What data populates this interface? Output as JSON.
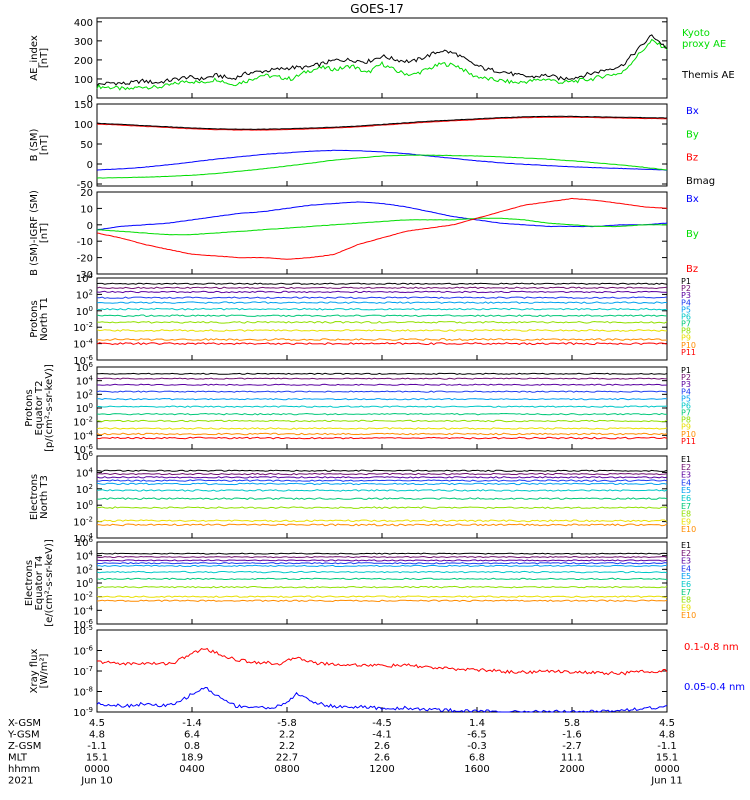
{
  "title": "GOES-17",
  "colors": {
    "black": "#000000",
    "green": "#00dd00",
    "blue": "#0000ff",
    "red": "#ff0000",
    "p_levels": [
      "#000000",
      "#701070",
      "#5a00a0",
      "#1e3cf0",
      "#00a0f0",
      "#00c8c8",
      "#00c878",
      "#90e000",
      "#e8e000",
      "#ff8c00",
      "#ff0000"
    ]
  },
  "chart_data": [
    {
      "type": "line",
      "panel": "ae",
      "ylabel": "AE_index\n[nT]",
      "ylim": [
        0,
        420
      ],
      "yticks": [
        "400",
        "300",
        "200",
        "100",
        "0"
      ],
      "series": [
        {
          "name": "Kyoto\nproxy AE",
          "color": "#00dd00",
          "values": [
            60,
            55,
            45,
            60,
            55,
            70,
            90,
            80,
            100,
            70,
            90,
            120,
            110,
            100,
            140,
            160,
            150,
            170,
            130,
            180,
            140,
            120,
            150,
            180,
            170,
            120,
            100,
            90,
            80,
            90,
            100,
            80,
            90,
            100,
            120,
            130,
            220,
            300,
            260
          ]
        },
        {
          "name": "Themis AE",
          "color": "#000000",
          "values": [
            70,
            80,
            75,
            90,
            80,
            95,
            110,
            100,
            120,
            100,
            130,
            140,
            150,
            160,
            160,
            180,
            200,
            200,
            190,
            220,
            200,
            190,
            220,
            250,
            230,
            180,
            150,
            140,
            120,
            110,
            120,
            100,
            110,
            130,
            150,
            170,
            250,
            330,
            260
          ]
        }
      ]
    },
    {
      "type": "line",
      "panel": "b",
      "ylabel": "B (SM)\n[nT]",
      "ylim": [
        -55,
        150
      ],
      "yticks": [
        "150",
        "100",
        "50",
        "0",
        "-50"
      ],
      "series": [
        {
          "name": "Bx",
          "color": "#0000ff",
          "values": [
            -15,
            -12,
            -8,
            -2,
            5,
            12,
            18,
            24,
            28,
            32,
            34,
            33,
            30,
            26,
            20,
            14,
            8,
            3,
            -1,
            -4,
            -7,
            -9,
            -11,
            -13,
            -15
          ]
        },
        {
          "name": "By",
          "color": "#00dd00",
          "values": [
            -35,
            -34,
            -33,
            -31,
            -28,
            -24,
            -18,
            -12,
            -5,
            2,
            10,
            15,
            20,
            22,
            22,
            21,
            20,
            18,
            15,
            12,
            8,
            3,
            -2,
            -8,
            -15
          ]
        },
        {
          "name": "Bz",
          "color": "#ff0000",
          "values": [
            100,
            97,
            94,
            91,
            88,
            86,
            85,
            85,
            86,
            88,
            90,
            93,
            97,
            101,
            105,
            108,
            111,
            114,
            116,
            117,
            117,
            116,
            115,
            114,
            113
          ]
        },
        {
          "name": "Bmag",
          "color": "#000000",
          "values": [
            102,
            99,
            96,
            93,
            90,
            88,
            87,
            87,
            88,
            90,
            92,
            95,
            99,
            103,
            107,
            110,
            113,
            116,
            118,
            119,
            119,
            118,
            117,
            116,
            115
          ]
        }
      ]
    },
    {
      "type": "line",
      "panel": "db",
      "ylabel": "B (SM)-IGRF (SM)\n[nT]",
      "ylim": [
        -30,
        20
      ],
      "yticks": [
        "20",
        "10",
        "0",
        "-10",
        "-20",
        "-30"
      ],
      "series": [
        {
          "name": "Bx",
          "color": "#0000ff",
          "values": [
            -3,
            -1,
            0,
            1,
            3,
            5,
            7,
            8,
            10,
            12,
            13,
            14,
            13,
            11,
            8,
            5,
            3,
            1,
            0,
            -1,
            -1,
            -1,
            0,
            0,
            1
          ]
        },
        {
          "name": "By",
          "color": "#00dd00",
          "values": [
            -3,
            -4,
            -5,
            -6,
            -6,
            -5,
            -4,
            -3,
            -2,
            -1,
            0,
            1,
            2,
            3,
            3,
            3,
            4,
            4,
            3,
            1,
            0,
            -1,
            -1,
            0,
            0
          ]
        },
        {
          "name": "Bz",
          "color": "#ff0000",
          "values": [
            -5,
            -8,
            -12,
            -15,
            -18,
            -19,
            -20,
            -20,
            -21,
            -20,
            -18,
            -12,
            -8,
            -4,
            -2,
            0,
            4,
            8,
            12,
            14,
            16,
            15,
            13,
            11,
            10
          ]
        }
      ]
    },
    {
      "type": "line",
      "panel": "pn",
      "ylabel": "Protons\nNorth T1",
      "ylim": [
        -6,
        4
      ],
      "scale": "log",
      "yticks": [
        "10^4",
        "10^2",
        "10^0",
        "10^-2",
        "10^-4",
        "10^-6"
      ],
      "channels": [
        {
          "name": "P1",
          "log": 3.3
        },
        {
          "name": "P2",
          "log": 2.8
        },
        {
          "name": "P3",
          "log": 2.3
        },
        {
          "name": "P4",
          "log": 1.6
        },
        {
          "name": "P5",
          "log": 1.0
        },
        {
          "name": "P6",
          "log": 0.2
        },
        {
          "name": "P7",
          "log": -0.6
        },
        {
          "name": "P8",
          "log": -1.4
        },
        {
          "name": "P9",
          "log": -2.4
        },
        {
          "name": "P10",
          "log": -3.5
        },
        {
          "name": "P11",
          "log": -4.0
        }
      ]
    },
    {
      "type": "line",
      "panel": "pe",
      "ylabel": "Protons\nEquator T2\n[p/(cm²-s-sr-keV)]",
      "ylim": [
        -6,
        6
      ],
      "scale": "log",
      "yticks": [
        "10^6",
        "10^4",
        "10^2",
        "10^0",
        "10^-2",
        "10^-4",
        "10^-6"
      ],
      "channels": [
        {
          "name": "P1",
          "log": 5.0
        },
        {
          "name": "P2",
          "log": 4.3
        },
        {
          "name": "P3",
          "log": 3.4
        },
        {
          "name": "P4",
          "log": 2.4
        },
        {
          "name": "P5",
          "log": 1.3
        },
        {
          "name": "P6",
          "log": 0.2
        },
        {
          "name": "P7",
          "log": -0.9
        },
        {
          "name": "P8",
          "log": -1.9
        },
        {
          "name": "P9",
          "log": -3.0
        },
        {
          "name": "P10",
          "log": -3.8
        },
        {
          "name": "P11",
          "log": -4.4
        }
      ]
    },
    {
      "type": "line",
      "panel": "en",
      "ylabel": "Electrons\nNorth T3",
      "ylim": [
        -4,
        6
      ],
      "scale": "log",
      "yticks": [
        "10^6",
        "10^4",
        "10^2",
        "10^0",
        "10^-2",
        "10^-4"
      ],
      "channels": [
        {
          "name": "E1",
          "log": 4.2
        },
        {
          "name": "E2",
          "log": 3.8
        },
        {
          "name": "E3",
          "log": 3.4
        },
        {
          "name": "E4",
          "log": 3.0
        },
        {
          "name": "E5",
          "log": 2.6
        },
        {
          "name": "E6",
          "log": 1.8
        },
        {
          "name": "E7",
          "log": 0.8
        },
        {
          "name": "E8",
          "log": -0.3
        },
        {
          "name": "E9",
          "log": -1.9
        },
        {
          "name": "E10",
          "log": -2.4
        }
      ]
    },
    {
      "type": "line",
      "panel": "ee",
      "ylabel": "Electrons\nEquator T4\n[e/(cm²-s-sr-keV)]",
      "ylim": [
        -6,
        6
      ],
      "scale": "log",
      "yticks": [
        "10^6",
        "10^4",
        "10^2",
        "10^0",
        "10^-2",
        "10^-4",
        "10^-6"
      ],
      "channels": [
        {
          "name": "E1",
          "log": 4.3
        },
        {
          "name": "E2",
          "log": 3.8
        },
        {
          "name": "E3",
          "log": 3.3
        },
        {
          "name": "E4",
          "log": 2.9
        },
        {
          "name": "E5",
          "log": 2.5
        },
        {
          "name": "E6",
          "log": 1.6
        },
        {
          "name": "E7",
          "log": 0.6
        },
        {
          "name": "E8",
          "log": -0.6
        },
        {
          "name": "E9",
          "log": -2.0
        },
        {
          "name": "E10",
          "log": -2.6
        }
      ]
    },
    {
      "type": "line",
      "panel": "xr",
      "ylabel": "Xray flux\n[W/m²]",
      "ylim": [
        -9,
        -5
      ],
      "scale": "log",
      "yticks": [
        "10^-5",
        "10^-6",
        "10^-7",
        "10^-8",
        "10^-9"
      ],
      "series": [
        {
          "name": "0.1-0.8 nm",
          "color": "#ff0000",
          "values": [
            -6.55,
            -6.6,
            -6.65,
            -6.62,
            -6.65,
            -6.6,
            -6.2,
            -5.9,
            -6.2,
            -6.45,
            -6.55,
            -6.6,
            -6.65,
            -6.3,
            -6.6,
            -6.65,
            -6.7,
            -6.7,
            -6.72,
            -6.75,
            -6.72,
            -6.78,
            -6.85,
            -6.9,
            -6.92,
            -6.95,
            -7.0,
            -7.05,
            -7.05,
            -7.02,
            -7.0,
            -7.05,
            -7.08,
            -7.1,
            -7.12,
            -7.05,
            -7.0,
            -7.0
          ]
        },
        {
          "name": "0.05-0.4 nm",
          "color": "#0000ff",
          "values": [
            -8.6,
            -8.65,
            -8.7,
            -8.6,
            -8.7,
            -8.65,
            -8.2,
            -7.8,
            -8.3,
            -8.7,
            -8.75,
            -8.8,
            -8.7,
            -8.1,
            -8.5,
            -8.7,
            -8.75,
            -8.75,
            -8.8,
            -8.85,
            -8.8,
            -8.85,
            -8.9,
            -8.92,
            -8.95,
            -8.95,
            -8.98,
            -9.0,
            -9.0,
            -8.97,
            -8.98,
            -9.0,
            -8.98,
            -8.95,
            -8.9,
            -8.85,
            -8.8,
            -8.75
          ]
        }
      ]
    }
  ],
  "footer": {
    "rows": [
      {
        "label": "X-GSM",
        "values": [
          "4.5",
          "-1.4",
          "-5.8",
          "-4.5",
          "1.4",
          "5.8",
          "4.5"
        ]
      },
      {
        "label": "Y-GSM",
        "values": [
          "4.8",
          "6.4",
          "2.2",
          "-4.1",
          "-6.5",
          "-1.6",
          "4.8"
        ]
      },
      {
        "label": "Z-GSM",
        "values": [
          "-1.1",
          "0.8",
          "2.2",
          "2.6",
          "-0.3",
          "-2.7",
          "-1.1"
        ]
      },
      {
        "label": "MLT",
        "values": [
          "15.1",
          "18.9",
          "22.7",
          "2.6",
          "6.8",
          "11.1",
          "15.1"
        ]
      },
      {
        "label": "hhmm",
        "values": [
          "0000",
          "0400",
          "0800",
          "1200",
          "1600",
          "2000",
          "0000"
        ]
      },
      {
        "label": "2021",
        "values": [
          "Jun 10",
          "",
          "",
          "",
          "",
          "",
          "Jun 11"
        ]
      }
    ]
  }
}
